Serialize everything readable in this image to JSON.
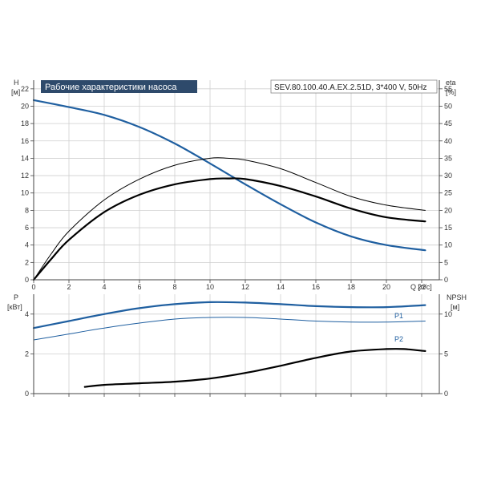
{
  "chart_data": [
    {
      "type": "line",
      "title": "Рабочие характеристики насоса",
      "subtitle": "SEV.80.100.40.A.EX.2.51D, 3*400 V, 50Hz",
      "xlabel": "Q [л/с]",
      "ylabel_left": "H",
      "ylabel_left_unit": "[м]",
      "ylabel_right": "eta",
      "ylabel_right_unit": "[%]",
      "xlim": [
        0,
        23
      ],
      "ylim_left": [
        0,
        23
      ],
      "ylim_right": [
        0,
        57.5
      ],
      "x_ticks": [
        0,
        2,
        4,
        6,
        8,
        10,
        12,
        14,
        16,
        18,
        20,
        22
      ],
      "y_ticks_left": [
        0,
        2,
        4,
        6,
        8,
        10,
        12,
        14,
        16,
        18,
        20,
        22
      ],
      "y_ticks_right": [
        0,
        5,
        10,
        15,
        20,
        25,
        30,
        35,
        40,
        45,
        50,
        55
      ],
      "grid": true,
      "series": [
        {
          "key": "H",
          "axis": "left",
          "color": "#1f5fa0",
          "x": [
            0,
            2,
            4,
            6,
            8,
            10,
            12,
            14,
            16,
            18,
            20,
            22.2
          ],
          "values": [
            20.7,
            19.9,
            19.0,
            17.6,
            15.7,
            13.4,
            11.0,
            8.7,
            6.6,
            5.0,
            4.0,
            3.4
          ]
        },
        {
          "key": "eta_thin",
          "axis": "right",
          "color": "#000000",
          "x": [
            0,
            1,
            2,
            4,
            6,
            8,
            10,
            11,
            12,
            14,
            16,
            18,
            20,
            22.2
          ],
          "values": [
            0,
            7.5,
            14,
            23,
            29,
            33,
            35,
            35,
            34.5,
            32,
            28,
            24,
            21.5,
            20
          ]
        },
        {
          "key": "eta_bold",
          "axis": "right",
          "color": "#000000",
          "x": [
            0,
            1,
            2,
            4,
            6,
            8,
            10,
            11,
            12,
            14,
            16,
            18,
            20,
            22.2
          ],
          "values": [
            0,
            6,
            11.5,
            19.5,
            24.5,
            27.5,
            29,
            29.2,
            29,
            27,
            24,
            20.5,
            18,
            16.8
          ]
        }
      ]
    },
    {
      "type": "line",
      "ylabel_left": "P",
      "ylabel_left_unit": "[кВт]",
      "ylabel_right": "NPSH",
      "ylabel_right_unit": "[м]",
      "xlim": [
        0,
        23
      ],
      "ylim_left": [
        0,
        5
      ],
      "ylim_right": [
        0,
        12.5
      ],
      "y_ticks_left": [
        0,
        2,
        4
      ],
      "y_ticks_right": [
        0,
        5,
        10
      ],
      "grid": true,
      "series": [
        {
          "name": "P1",
          "axis": "left",
          "color": "#1f5fa0",
          "x": [
            0,
            2,
            4,
            6,
            8,
            10,
            12,
            14,
            16,
            18,
            20,
            22.2
          ],
          "values": [
            3.3,
            3.65,
            4.0,
            4.3,
            4.5,
            4.6,
            4.58,
            4.5,
            4.4,
            4.35,
            4.35,
            4.45
          ]
        },
        {
          "name": "P2",
          "axis": "left",
          "color": "#1f5fa0",
          "x": [
            0,
            2,
            4,
            6,
            8,
            10,
            12,
            14,
            16,
            18,
            20,
            22.2
          ],
          "values": [
            2.7,
            3.0,
            3.3,
            3.55,
            3.75,
            3.83,
            3.83,
            3.75,
            3.65,
            3.6,
            3.6,
            3.65
          ]
        },
        {
          "key": "NPSH",
          "axis": "right",
          "color": "#000000",
          "x": [
            2.9,
            4,
            6,
            8,
            10,
            12,
            14,
            16,
            18,
            20,
            21,
            22.2
          ],
          "values": [
            0.85,
            1.1,
            1.3,
            1.5,
            1.9,
            2.6,
            3.5,
            4.5,
            5.3,
            5.6,
            5.6,
            5.35
          ]
        }
      ]
    }
  ]
}
